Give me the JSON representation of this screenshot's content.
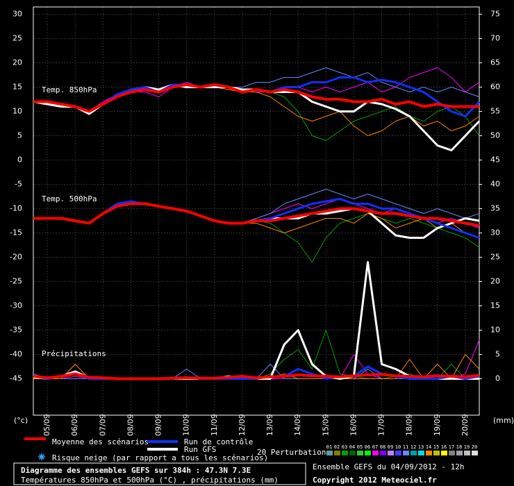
{
  "chart_data": {
    "type": "line",
    "ylim": [
      -52.5,
      31.5
    ],
    "y2lim": [
      -7.5,
      76.5
    ],
    "yticks": [
      30,
      25,
      20,
      15,
      10,
      5,
      0,
      -5,
      -10,
      -15,
      -20,
      -25,
      -30,
      -35,
      -40,
      -45
    ],
    "y2ticks": [
      75,
      70,
      65,
      60,
      55,
      50,
      45,
      40,
      35,
      30,
      25,
      20,
      15,
      10,
      5,
      0
    ],
    "ylabel": "(°c)",
    "y2label": "(mm)",
    "grid": true,
    "categories": [
      null,
      "05/09",
      null,
      "06/09",
      null,
      "07/09",
      null,
      "08/09",
      null,
      "09/09",
      null,
      "10/09",
      null,
      "11/09",
      null,
      "12/09",
      null,
      "13/09",
      null,
      "14/09",
      null,
      "15/09",
      null,
      "16/09",
      null,
      "17/09",
      null,
      "18/09",
      null,
      "19/09",
      null,
      "20/09",
      null
    ],
    "annotations": [
      "Temp. 850hPa",
      "Temp. 500hPa",
      "Précipitations"
    ],
    "series": [
      {
        "name": "03",
        "color": "#00a000",
        "line_width": 1,
        "values": [
          12,
          12,
          11.5,
          11,
          10,
          11.5,
          13,
          14,
          14.5,
          14,
          15,
          15.5,
          15,
          15,
          15,
          14,
          14.5,
          14,
          13,
          10,
          5,
          4,
          6,
          8,
          9,
          10,
          11,
          9,
          8,
          10,
          11,
          9,
          5
        ]
      },
      {
        "name": "07",
        "color": "#ff00ff",
        "line_width": 1,
        "values": [
          12,
          12,
          11.5,
          11,
          10,
          12,
          13.5,
          14,
          14,
          13,
          15,
          16,
          15,
          15.5,
          15,
          14,
          14,
          14,
          15,
          15,
          14,
          15,
          14,
          15,
          16,
          14,
          15,
          17,
          18,
          19,
          17,
          14,
          16
        ]
      },
      {
        "name": "11",
        "color": "#6688ff",
        "line_width": 1,
        "values": [
          12,
          12,
          11.5,
          11,
          10,
          11.5,
          13,
          14,
          15,
          14,
          15,
          15,
          15,
          15,
          15,
          15,
          16,
          16,
          17,
          17,
          18,
          19,
          18,
          17,
          18,
          16,
          15,
          14,
          15,
          14,
          15,
          14,
          13
        ]
      },
      {
        "name": "14",
        "color": "#ff8800",
        "line_width": 1,
        "values": [
          12,
          12,
          11.5,
          11,
          10,
          11.5,
          13,
          14,
          14.5,
          14,
          15,
          15,
          15,
          15,
          14.5,
          14,
          14,
          13,
          11,
          9,
          8,
          9,
          10,
          7,
          5,
          6,
          8,
          9,
          7,
          8,
          6,
          7,
          9
        ]
      },
      {
        "name": "Run GFS",
        "color": "#ffffff",
        "line_width": 3,
        "values": [
          12,
          11.5,
          11,
          11,
          9.5,
          11.5,
          13,
          14,
          15,
          14.5,
          15.5,
          15,
          15,
          15,
          15,
          14.5,
          14.5,
          14,
          14,
          14,
          12,
          11,
          10,
          10,
          12,
          11.5,
          10.5,
          9,
          6,
          3,
          2,
          5,
          8
        ]
      },
      {
        "name": "Run de contrôle",
        "color": "#1030ff",
        "line_width": 3,
        "values": [
          12,
          12,
          11.5,
          11,
          10,
          11.5,
          13.5,
          14.5,
          15,
          14,
          15.5,
          15.5,
          15,
          15.5,
          15,
          14,
          14.5,
          14,
          15,
          15,
          16,
          16,
          17,
          17,
          16,
          16.5,
          16,
          15,
          14,
          12,
          10,
          9,
          12
        ]
      },
      {
        "name": "Moyenne des scénarios",
        "color": "#ff0000",
        "line_width": 4,
        "values": [
          12,
          12,
          11.5,
          11,
          10,
          11.5,
          13,
          14,
          14.5,
          14,
          15,
          15.5,
          15,
          15.5,
          15,
          14,
          14.5,
          14,
          14.5,
          14,
          13,
          12.5,
          12.5,
          12,
          12,
          12.5,
          11.5,
          12,
          11,
          11.5,
          11,
          11,
          11
        ]
      },
      {
        "name": "03",
        "color": "#00a000",
        "line_width": 1,
        "values": [
          -12,
          -12,
          -12,
          -12.5,
          -13,
          -11,
          -9.5,
          -9,
          -9,
          -9.5,
          -10,
          -10.5,
          -11.5,
          -12.5,
          -13,
          -13,
          -12.5,
          -13,
          -15,
          -17,
          -21,
          -16,
          -13,
          -12,
          -11,
          -12,
          -13,
          -12,
          -13,
          -14,
          -15,
          -16,
          -18
        ]
      },
      {
        "name": "07",
        "color": "#ff00ff",
        "line_width": 1,
        "values": [
          -12,
          -12,
          -12,
          -12.5,
          -13,
          -11,
          -9.5,
          -9,
          -9,
          -9.5,
          -10,
          -10.5,
          -11.5,
          -12.5,
          -13,
          -13,
          -12,
          -11,
          -10,
          -9,
          -10,
          -9,
          -8,
          -9,
          -10,
          -11,
          -10,
          -11,
          -12,
          -13,
          -12,
          -13,
          -14
        ]
      },
      {
        "name": "11",
        "color": "#6688ff",
        "line_width": 1,
        "values": [
          -12,
          -12,
          -12,
          -12.5,
          -13,
          -11,
          -9.5,
          -9,
          -9,
          -9.5,
          -10,
          -10.5,
          -11.5,
          -12.5,
          -13,
          -13,
          -12,
          -11,
          -9,
          -8,
          -7,
          -6,
          -7,
          -8,
          -7,
          -8,
          -9,
          -10,
          -11,
          -10,
          -11,
          -12,
          -11
        ]
      },
      {
        "name": "14",
        "color": "#ff8800",
        "line_width": 1,
        "values": [
          -12,
          -12,
          -12,
          -12.5,
          -13,
          -11,
          -9.5,
          -9,
          -9,
          -9.5,
          -10,
          -10.5,
          -11.5,
          -12.5,
          -13,
          -13,
          -13,
          -14,
          -15,
          -14,
          -13,
          -12,
          -12,
          -13,
          -11,
          -12,
          -14,
          -13,
          -12,
          -14,
          -13,
          -15,
          -16
        ]
      },
      {
        "name": "Run GFS",
        "color": "#ffffff",
        "line_width": 3,
        "values": [
          -12,
          -12,
          -12,
          -12.5,
          -13,
          -11,
          -9.5,
          -9,
          -9,
          -9.5,
          -10,
          -10.5,
          -11.5,
          -12.5,
          -13,
          -13,
          -12.5,
          -12,
          -12,
          -12,
          -11,
          -11,
          -10.5,
          -10,
          -10.5,
          -13,
          -15.5,
          -16,
          -16,
          -14,
          -13,
          -12,
          -12.5
        ]
      },
      {
        "name": "Run de contrôle",
        "color": "#1030ff",
        "line_width": 3,
        "values": [
          -12,
          -12,
          -12,
          -12.5,
          -13,
          -11,
          -9,
          -8.5,
          -9,
          -9.5,
          -10,
          -10.5,
          -11.5,
          -12.5,
          -13,
          -13,
          -12.5,
          -12,
          -11,
          -10,
          -9,
          -8.5,
          -8,
          -9,
          -9,
          -10,
          -10,
          -11,
          -12,
          -13,
          -14,
          -15,
          -16
        ]
      },
      {
        "name": "Moyenne des scénarios",
        "color": "#ff0000",
        "line_width": 4,
        "values": [
          -12,
          -12,
          -12,
          -12.5,
          -13,
          -11,
          -9.5,
          -9,
          -9,
          -9.5,
          -10,
          -10.5,
          -11.5,
          -12.5,
          -13,
          -13,
          -12.5,
          -12.5,
          -12,
          -11.5,
          -11,
          -10.5,
          -10,
          -10,
          -10.5,
          -11,
          -11,
          -11.5,
          -12,
          -12,
          -12.5,
          -13,
          -13.5
        ]
      },
      {
        "name": "03",
        "color": "#00a000",
        "line_width": 1,
        "axis": "y2",
        "values": [
          0,
          0,
          0.5,
          1,
          0,
          0,
          0,
          0,
          0,
          0,
          0,
          0,
          0,
          0,
          0,
          0,
          0,
          1,
          4,
          6,
          2,
          10,
          1,
          0.5,
          0,
          0,
          0.5,
          1,
          0,
          0,
          3,
          0,
          0
        ]
      },
      {
        "name": "07",
        "color": "#ff00ff",
        "line_width": 1,
        "axis": "y2",
        "values": [
          0,
          0,
          0,
          0.5,
          0,
          0,
          0,
          0,
          0,
          0,
          0,
          0,
          0,
          0,
          0,
          0,
          0,
          0,
          0,
          0,
          0,
          0,
          0,
          5,
          1,
          0,
          0,
          0,
          0,
          0,
          0,
          1,
          8
        ]
      },
      {
        "name": "11",
        "color": "#6688ff",
        "line_width": 1,
        "axis": "y2",
        "values": [
          1,
          0,
          0,
          0,
          0,
          0,
          0,
          0,
          0,
          0,
          0,
          2,
          0,
          0,
          0,
          0,
          0,
          3,
          0,
          0,
          0,
          0,
          0,
          0,
          2,
          0,
          0,
          0,
          0,
          0,
          0,
          0,
          0
        ]
      },
      {
        "name": "14",
        "color": "#ff8800",
        "line_width": 1,
        "axis": "y2",
        "values": [
          0,
          0,
          0,
          3,
          0,
          0,
          0,
          0,
          0,
          0,
          0,
          0,
          0,
          0,
          0,
          0,
          0,
          0,
          1,
          0,
          0,
          0,
          0,
          0,
          0,
          0,
          0,
          4,
          0,
          3,
          0,
          5,
          2
        ]
      },
      {
        "name": "Run GFS",
        "color": "#ffffff",
        "line_width": 3,
        "axis": "y2",
        "values": [
          0.3,
          0,
          0.5,
          1.5,
          0.2,
          0,
          0,
          0,
          0,
          0,
          0,
          0,
          0,
          0,
          0.5,
          0,
          0,
          0,
          7,
          10,
          3,
          0.5,
          0,
          0.5,
          24,
          3,
          2,
          0.5,
          0,
          0,
          0,
          0,
          0
        ]
      },
      {
        "name": "Run de contrôle",
        "color": "#1030ff",
        "line_width": 3,
        "axis": "y2",
        "values": [
          0.5,
          0,
          0.5,
          1,
          0,
          0,
          0,
          0,
          0,
          0,
          0,
          0.3,
          0,
          0,
          0,
          0,
          0,
          0.5,
          0.5,
          2,
          1,
          0,
          0.5,
          0.5,
          2.5,
          1,
          0.5,
          0,
          0,
          0,
          0.5,
          0,
          0.5
        ]
      },
      {
        "name": "Moyenne des scénarios",
        "color": "#ff0000",
        "line_width": 4,
        "axis": "y2",
        "values": [
          0.5,
          0.2,
          0.5,
          1,
          0.3,
          0.2,
          0,
          0,
          0,
          0,
          0.1,
          0.2,
          0.1,
          0.1,
          0.3,
          0.5,
          0.2,
          0.4,
          0.5,
          0.8,
          0.6,
          0.5,
          0.4,
          0.6,
          0.8,
          0.9,
          0.6,
          0.5,
          0.4,
          0.6,
          0.5,
          0.4,
          0.7
        ]
      }
    ],
    "snow_legend": "Risque neige (par rapport a tous les scénarios)",
    "perturbations_label": "20 Perturbations",
    "perturbations": [
      {
        "name": "01",
        "color": "#5f9ea0"
      },
      {
        "name": "02",
        "color": "#808000"
      },
      {
        "name": "03",
        "color": "#00a000"
      },
      {
        "name": "04",
        "color": "#006400"
      },
      {
        "name": "05",
        "color": "#40c040"
      },
      {
        "name": "06",
        "color": "#00ff00"
      },
      {
        "name": "07",
        "color": "#ff00ff"
      },
      {
        "name": "08",
        "color": "#8000ff"
      },
      {
        "name": "09",
        "color": "#c080ff"
      },
      {
        "name": "10",
        "color": "#4040ff"
      },
      {
        "name": "11",
        "color": "#6688ff"
      },
      {
        "name": "12",
        "color": "#00a0a0"
      },
      {
        "name": "13",
        "color": "#00e0e0"
      },
      {
        "name": "14",
        "color": "#ff8800"
      },
      {
        "name": "15",
        "color": "#c0c000"
      },
      {
        "name": "16",
        "color": "#ffff00"
      },
      {
        "name": "17",
        "color": "#808080"
      },
      {
        "name": "18",
        "color": "#a0a0a0"
      },
      {
        "name": "19",
        "color": "#c0c0c0"
      },
      {
        "name": "20",
        "color": "#e0e0e0"
      }
    ],
    "title": "Diagramme des ensembles GEFS sur 384h : 47.3N 7.3E",
    "subtitle": "Températures 850hPa et 500hPa (°C) , précipitations (mm)",
    "run_info": "Ensemble GEFS du 04/09/2012 - 12h",
    "copyright": "Copyright 2012 Meteociel.fr"
  }
}
